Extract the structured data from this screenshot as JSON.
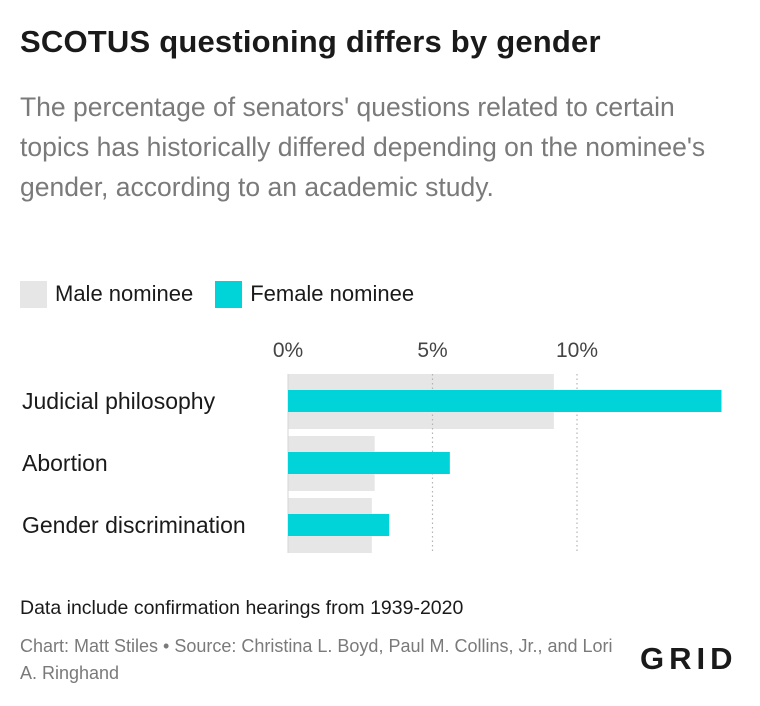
{
  "header": {
    "title": "SCOTUS questioning differs by gender",
    "subtitle": "The percentage of senators' questions related to certain topics has historically differed depending on the nominee's gender, according to an academic study."
  },
  "legend": [
    {
      "label": "Male nominee",
      "color": "#e6e6e6"
    },
    {
      "label": "Female nominee",
      "color": "#00d4d8"
    }
  ],
  "chart_data": {
    "type": "bar",
    "orientation": "horizontal",
    "categories": [
      "Judicial philosophy",
      "Abortion",
      "Gender discrimination"
    ],
    "series": [
      {
        "name": "Male nominee",
        "color": "#e6e6e6",
        "values": [
          9.2,
          3.0,
          2.9
        ]
      },
      {
        "name": "Female nominee",
        "color": "#00d4d8",
        "values": [
          15.0,
          5.6,
          3.5
        ]
      }
    ],
    "x_ticks": [
      0,
      5,
      10
    ],
    "x_tick_labels": [
      "0%",
      "5%",
      "10%"
    ],
    "xlim": [
      0,
      15
    ],
    "gridlines": "vertical dotted",
    "legend_position": "top-left"
  },
  "footer": {
    "note": "Data include confirmation hearings from 1939-2020",
    "credit": "Chart: Matt Stiles • Source: Christina L. Boyd, Paul M. Collins, Jr., and Lori A. Ringhand",
    "logo": "GRID"
  }
}
